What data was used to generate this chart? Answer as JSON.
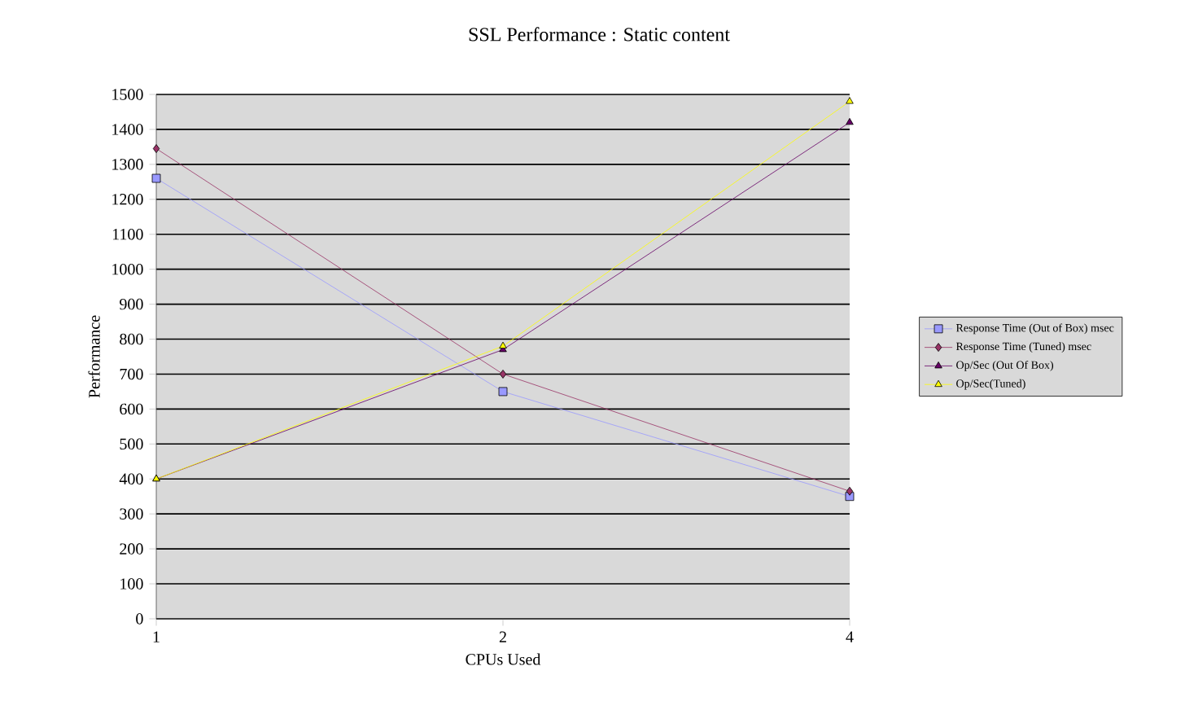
{
  "chart_data": {
    "type": "line",
    "title": "SSL Performance : Static content",
    "xlabel": "CPUs Used",
    "ylabel": "Performance",
    "categories": [
      "1",
      "2",
      "4"
    ],
    "ylim": [
      0,
      1500
    ],
    "yticks": [
      0,
      100,
      200,
      300,
      400,
      500,
      600,
      700,
      800,
      900,
      1000,
      1100,
      1200,
      1300,
      1400,
      1500
    ],
    "grid": "y",
    "legend": "right",
    "series": [
      {
        "name": "Response Time (Out of Box) msec",
        "color": "#9999ff",
        "marker": "square",
        "values": [
          1260,
          650,
          350
        ]
      },
      {
        "name": "Response Time (Tuned) msec",
        "color": "#993366",
        "marker": "diamond",
        "values": [
          1345,
          700,
          365
        ]
      },
      {
        "name": "Op/Sec (Out Of Box)",
        "color": "#660066",
        "marker": "triangle down",
        "values": [
          400,
          770,
          1420
        ]
      },
      {
        "name": "Op/Sec(Tuned)",
        "color": "#ffff00",
        "marker": "triangle",
        "values": [
          400,
          780,
          1480
        ]
      }
    ]
  }
}
